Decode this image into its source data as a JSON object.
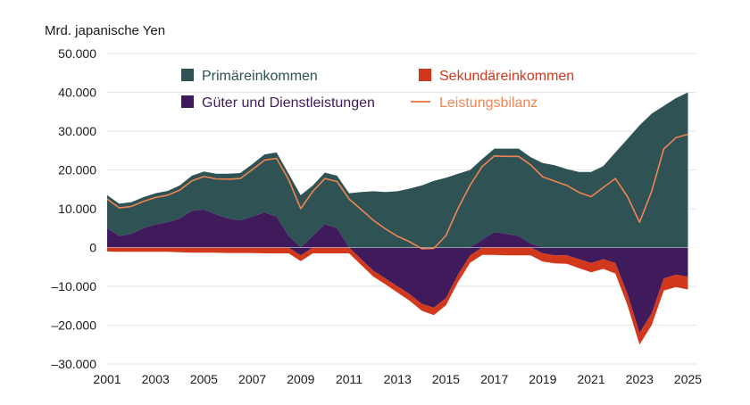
{
  "chart_data": {
    "type": "area",
    "unit_label": "Mrd. japanische Yen",
    "x_ticks": [
      "2001",
      "2003",
      "2005",
      "2007",
      "2009",
      "2011",
      "2013",
      "2015",
      "2017",
      "2019",
      "2021",
      "2023",
      "2025"
    ],
    "y_ticks": [
      "50.000",
      "40.000",
      "30.000",
      "20.000",
      "10.000",
      "0",
      "–10.000",
      "–20.000",
      "–30.000"
    ],
    "xlim": [
      2001.0,
      2025.35
    ],
    "ylim": [
      -30000,
      50000
    ],
    "grid": true,
    "legend_placement": "top-center",
    "colors": {
      "primary_income": "#2f5254",
      "goods_services": "#3f1b5c",
      "secondary_income": "#d2381c",
      "current_account": "#ef8451"
    },
    "series": [
      {
        "name": "Primäreinkommen",
        "type": "stacked-area",
        "x": [
          2001.0,
          2001.5,
          2002.0,
          2002.5,
          2003.0,
          2003.5,
          2004.0,
          2004.5,
          2005.0,
          2005.5,
          2006.0,
          2006.5,
          2007.0,
          2007.5,
          2008.0,
          2008.5,
          2009.0,
          2009.5,
          2010.0,
          2010.5,
          2011.0,
          2011.5,
          2012.0,
          2012.5,
          2013.0,
          2013.5,
          2014.0,
          2014.5,
          2015.0,
          2015.5,
          2016.0,
          2016.5,
          2017.0,
          2017.5,
          2018.0,
          2018.5,
          2019.0,
          2019.5,
          2020.0,
          2020.5,
          2021.0,
          2021.5,
          2022.0,
          2022.5,
          2023.0,
          2023.5,
          2024.0,
          2024.5,
          2025.0
        ],
        "values": [
          8500,
          8300,
          8200,
          8000,
          8000,
          8100,
          8500,
          9000,
          9800,
          10500,
          11500,
          12200,
          13500,
          15000,
          16500,
          16000,
          13500,
          13000,
          13300,
          13500,
          14000,
          14300,
          14500,
          14300,
          14500,
          15200,
          16000,
          17200,
          18000,
          19000,
          20000,
          20800,
          21500,
          22000,
          22500,
          22300,
          21800,
          21200,
          20200,
          19500,
          19500,
          21000,
          24500,
          28000,
          31500,
          34500,
          36500,
          38500,
          40000
        ]
      },
      {
        "name": "Güter und Dienstleistungen",
        "type": "stacked-area",
        "x": [
          2001.0,
          2001.5,
          2002.0,
          2002.5,
          2003.0,
          2003.5,
          2004.0,
          2004.5,
          2005.0,
          2005.5,
          2006.0,
          2006.5,
          2007.0,
          2007.5,
          2008.0,
          2008.5,
          2009.0,
          2009.5,
          2010.0,
          2010.5,
          2011.0,
          2011.5,
          2012.0,
          2012.5,
          2013.0,
          2013.5,
          2014.0,
          2014.5,
          2015.0,
          2015.5,
          2016.0,
          2016.5,
          2017.0,
          2017.5,
          2018.0,
          2018.5,
          2019.0,
          2019.5,
          2020.0,
          2020.5,
          2021.0,
          2021.5,
          2022.0,
          2022.5,
          2023.0,
          2023.5,
          2024.0,
          2024.5,
          2025.0
        ],
        "values": [
          5000,
          3000,
          3500,
          5000,
          6000,
          6500,
          7500,
          9500,
          9800,
          8500,
          7500,
          7000,
          8000,
          9000,
          8000,
          3000,
          -2000,
          3000,
          6000,
          5000,
          0,
          -3000,
          -6000,
          -8000,
          -10000,
          -12000,
          -14500,
          -15500,
          -13000,
          -7000,
          -2000,
          2000,
          4000,
          3500,
          3000,
          1000,
          -1500,
          -2000,
          -2000,
          -3000,
          -4000,
          -3000,
          -4000,
          -12000,
          -22000,
          -17000,
          -8000,
          -7000,
          -7500
        ]
      },
      {
        "name": "Sekundäreinkommen",
        "type": "stacked-area",
        "x": [
          2001.0,
          2001.5,
          2002.0,
          2002.5,
          2003.0,
          2003.5,
          2004.0,
          2004.5,
          2005.0,
          2005.5,
          2006.0,
          2006.5,
          2007.0,
          2007.5,
          2008.0,
          2008.5,
          2009.0,
          2009.5,
          2010.0,
          2010.5,
          2011.0,
          2011.5,
          2012.0,
          2012.5,
          2013.0,
          2013.5,
          2014.0,
          2014.5,
          2015.0,
          2015.5,
          2016.0,
          2016.5,
          2017.0,
          2017.5,
          2018.0,
          2018.5,
          2019.0,
          2019.5,
          2020.0,
          2020.5,
          2021.0,
          2021.5,
          2022.0,
          2022.5,
          2023.0,
          2023.5,
          2024.0,
          2024.5,
          2025.0
        ],
        "values": [
          -1000,
          -1100,
          -1100,
          -1100,
          -1100,
          -1100,
          -1200,
          -1300,
          -1300,
          -1300,
          -1400,
          -1400,
          -1400,
          -1500,
          -1500,
          -1500,
          -1500,
          -1500,
          -1500,
          -1500,
          -1500,
          -1500,
          -1500,
          -1500,
          -1600,
          -1700,
          -1800,
          -1900,
          -1900,
          -1900,
          -1900,
          -1900,
          -1900,
          -2000,
          -2000,
          -2000,
          -2100,
          -2100,
          -2200,
          -2300,
          -2400,
          -2500,
          -2700,
          -2900,
          -3000,
          -3000,
          -3100,
          -3200,
          -3300
        ]
      },
      {
        "name": "Leistungsbilanz",
        "type": "line",
        "x": [
          2001.0,
          2001.5,
          2002.0,
          2002.5,
          2003.0,
          2003.5,
          2004.0,
          2004.5,
          2005.0,
          2005.5,
          2006.0,
          2006.5,
          2007.0,
          2007.5,
          2008.0,
          2008.5,
          2009.0,
          2009.5,
          2010.0,
          2010.5,
          2011.0,
          2011.5,
          2012.0,
          2012.5,
          2013.0,
          2013.5,
          2014.0,
          2014.5,
          2015.0,
          2015.5,
          2016.0,
          2016.5,
          2017.0,
          2017.5,
          2018.0,
          2018.5,
          2019.0,
          2019.5,
          2020.0,
          2020.5,
          2021.0,
          2021.5,
          2022.0,
          2022.5,
          2023.0,
          2023.5,
          2024.0,
          2024.5,
          2025.0
        ],
        "values": [
          12500,
          10200,
          10600,
          11900,
          12900,
          13500,
          14800,
          17200,
          18300,
          17700,
          17600,
          17800,
          20100,
          22500,
          23000,
          17500,
          10000,
          14500,
          17800,
          17000,
          12500,
          9800,
          7000,
          4800,
          2900,
          1500,
          -300,
          -200,
          3100,
          10100,
          16100,
          20900,
          23600,
          23500,
          23500,
          21300,
          18200,
          17100,
          16000,
          14200,
          13100,
          15500,
          17800,
          13100,
          6500,
          14500,
          25400,
          28300,
          29200
        ]
      }
    ]
  }
}
